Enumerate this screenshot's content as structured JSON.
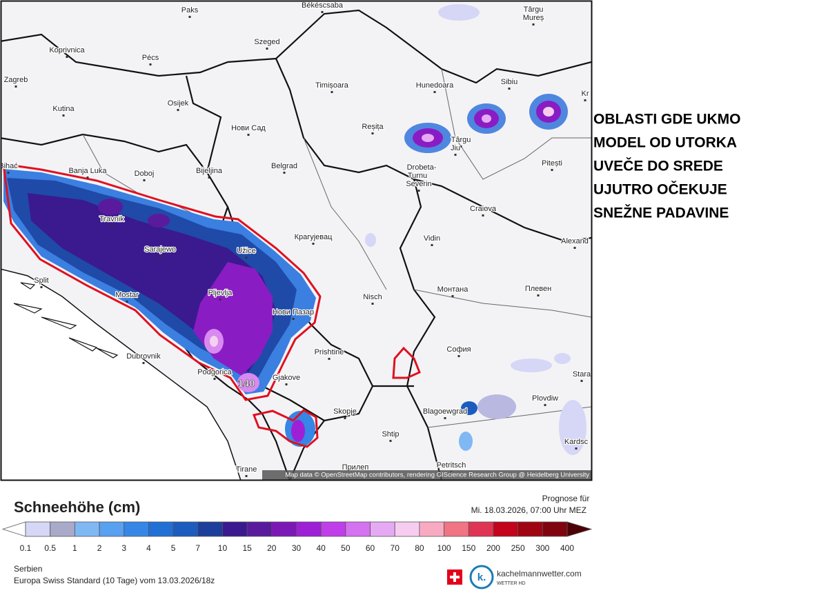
{
  "map": {
    "cities": [
      "Paks",
      "Békéscsaba",
      "Târgu",
      "Mureș",
      "Koprivnica",
      "Pécs",
      "Szeged",
      "Zagreb",
      "Osijek",
      "Timișoara",
      "Hunedoara",
      "Sibiu",
      "Kr",
      "Kutina",
      "Нови Сад",
      "Reșița",
      "Târgu",
      "Jiu",
      "Bihać",
      "Banja Luka",
      "Doboj",
      "Bijeljina",
      "Belgrad",
      "Drobeta-",
      "Turnu",
      "Severin",
      "Pitești",
      "Craiova",
      "Travnik",
      "Alexand",
      "Крагујевац",
      "Užice",
      "Sarajewo",
      "Vidin",
      "Split",
      "Монтана",
      "Плевен",
      "Mostar",
      "Pljevlja",
      "Nisch",
      "Нови Пазар",
      "София",
      "Dubrovnik",
      "Prishtine",
      "Podgorica",
      "Gjakove",
      "Stara",
      "Plovdiw",
      "Skopje",
      "Blagoewgrad",
      "Shtip",
      "Kardsc",
      "Petritsch",
      "Прилеп",
      "Tirane"
    ],
    "peak_label": "140",
    "attribution": "Map data © OpenStreetMap contributors, rendering GIScience Research Group @ Heidelberg University"
  },
  "annotation": {
    "lines": [
      "OBLASTI GDE UKMO",
      "MODEL OD UTORKA",
      "UVEČE DO SREDE",
      "UJUTRO OČEKUJE",
      "SNEŽNE PADAVINE"
    ]
  },
  "legend": {
    "title": "Schneehöhe (cm)",
    "labels": [
      "0.1",
      "0.5",
      "1",
      "2",
      "3",
      "4",
      "5",
      "7",
      "10",
      "15",
      "20",
      "30",
      "40",
      "50",
      "60",
      "70",
      "80",
      "100",
      "150",
      "200",
      "250",
      "300",
      "400"
    ],
    "colors": [
      "#d6d6f6",
      "#a9a9c9",
      "#80b8f4",
      "#58a0f0",
      "#3586e6",
      "#2270d6",
      "#1c5cbe",
      "#1d3e9a",
      "#3a1a8e",
      "#5a1a9e",
      "#7c18b6",
      "#9e20d6",
      "#c03eea",
      "#d472f0",
      "#e6aaf4",
      "#f6cdf0",
      "#f8aac2",
      "#f07484",
      "#e03454",
      "#c2041c",
      "#a00412",
      "#80040e"
    ],
    "below_color": "#ffffff",
    "above_color": "#4e0006"
  },
  "forecast": {
    "label": "Prognose für",
    "time": "Mi. 18.03.2026, 07:00 Uhr MEZ"
  },
  "footer": {
    "region": "Serbien",
    "model": "Europa Swiss Standard (10 Tage) vom 13.03.2026/18z"
  },
  "brand": {
    "logo": "k.",
    "name": "kachelmannwetter.com",
    "sub": "WETTER HD"
  }
}
